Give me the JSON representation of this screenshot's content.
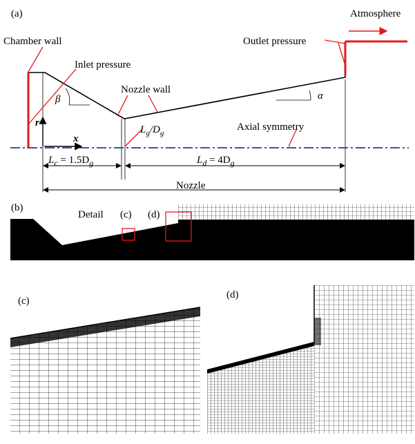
{
  "panel_a": {
    "tag": "(a)",
    "labels": {
      "chamber_wall": "Chamber wall",
      "inlet_pressure": "Inlet pressure",
      "nozzle_wall": "Nozzle wall",
      "atmosphere": "Atmosphere",
      "outlet_pressure": "Outlet pressure",
      "axial_symmetry": "Axial symmetry",
      "nozzle": "Nozzle",
      "beta": "β",
      "alpha": "α",
      "r_axis": "r",
      "x_axis": "x"
    },
    "dims": {
      "lc_main": "L",
      "lc_sub": "c",
      "lc_rest": " = 1.5D",
      "lc_sub2": "g",
      "ld_main": "L",
      "ld_sub": "d",
      "ld_rest": " = 4D",
      "ld_sub2": "g",
      "lg_main": "L",
      "lg_sub": "g",
      "lg_mid": "/D",
      "lg_sub2": "g"
    },
    "colors": {
      "boundary": "#e31a1c",
      "axis": "#1f3d99"
    }
  },
  "panel_b": {
    "tag": "(b)",
    "detail_label": "Detail",
    "detail_c": "(c)",
    "detail_d": "(d)"
  },
  "panel_c": {
    "tag": "(c)"
  },
  "panel_d": {
    "tag": "(d)"
  }
}
